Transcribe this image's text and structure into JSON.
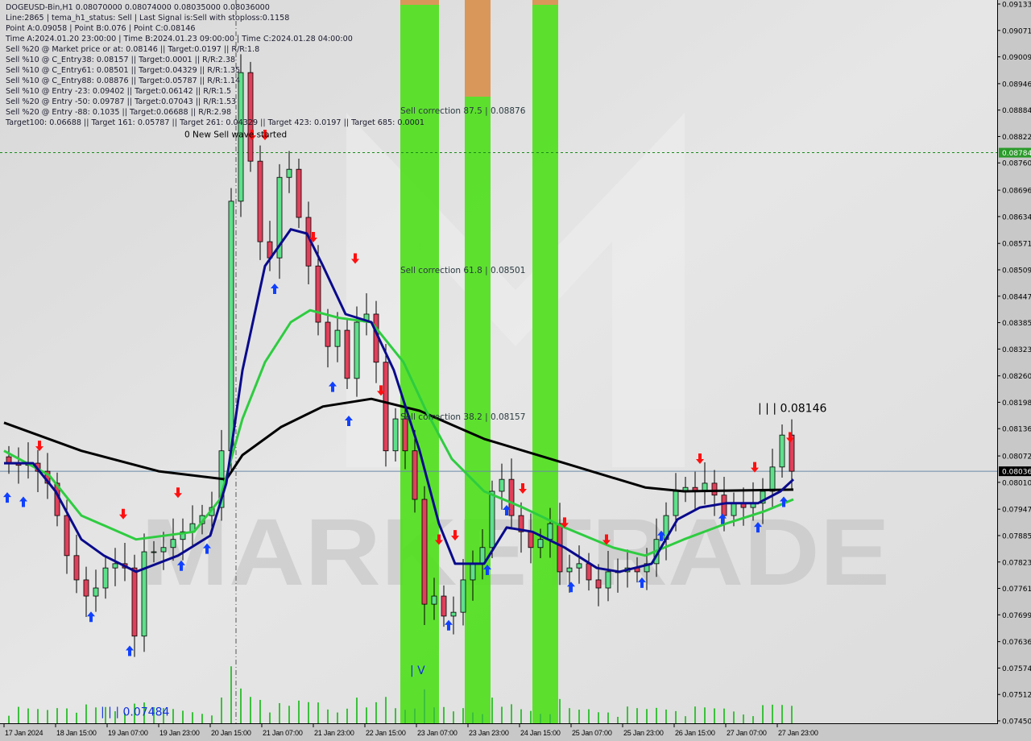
{
  "header": {
    "symbol_line": "DOGEUSD-Bin,H1  0.08070000 0.08074000 0.08035000 0.08036000",
    "info_lines": [
      "Line:2865 | tema_h1_status: Sell | Last Signal is:Sell with stoploss:0.1158",
      "Point A:0.09058 | Point B:0.076 | Point C:0.08146",
      "Time A:2024.01.20 23:00:00 | Time B:2024.01.23 09:00:00 | Time C:2024.01.28 04:00:00",
      "Sell %20 @ Market price or at: 0.08146 || Target:0.0197 || R/R:1.8",
      "Sell %10 @ C_Entry38: 0.08157 || Target:0.0001 || R/R:2.38",
      "Sell %10 @ C_Entry61: 0.08501 || Target:0.04329 || R/R:1.35",
      "Sell %10 @ C_Entry88: 0.08876 || Target:0.05787 || R/R:1.14",
      "Sell %10 @ Entry -23: 0.09402 || Target:0.06142 || R/R:1.5",
      "Sell %20 @ Entry -50: 0.09787 || Target:0.07043 || R/R:1.53",
      "Sell %20 @ Entry -88: 0.1035 || Target:0.06688 || R/R:2.98",
      "Target100: 0.06688 || Target 161: 0.05787 || Target 261: 0.04329 || Target 423: 0.0197 || Target 685: 0.0001"
    ]
  },
  "watermark": "MARKETRADE",
  "colors": {
    "bull": "#5ee08a",
    "bear": "#e0405a",
    "slow_ma": "#000000",
    "mid_ma": "#2ecc40",
    "fast_ma": "#0a0a8c",
    "band_green": "#4ee01a",
    "band_orange": "#d9975a",
    "buy_arrow": "#1040ff",
    "sell_arrow": "#ff1010",
    "price_line": "#6a8aa8",
    "level_line": "#1a8a1a"
  },
  "chart_data": {
    "type": "candlestick",
    "title": "DOGEUSD-Bin,H1",
    "ylim": [
      0.0745,
      0.09133
    ],
    "y_ticks": [
      "0.09133",
      "0.09071",
      "0.09009",
      "0.08946",
      "0.08884",
      "0.08822",
      "0.08760",
      "0.08696",
      "0.08634",
      "0.08571",
      "0.08509",
      "0.08447",
      "0.08385",
      "0.08323",
      "0.08260",
      "0.08198",
      "0.08136",
      "0.08072",
      "0.08010",
      "0.07947",
      "0.07885",
      "0.07823",
      "0.07761",
      "0.07699",
      "0.07636",
      "0.07574",
      "0.07512",
      "0.07450"
    ],
    "x_ticks": [
      {
        "label": "17 Jan 2024",
        "time": "2024-01-17 23:00"
      },
      {
        "label": "18 Jan 15:00",
        "time": "2024-01-18 15:00"
      },
      {
        "label": "19 Jan 07:00",
        "time": "2024-01-19 07:00"
      },
      {
        "label": "19 Jan 23:00",
        "time": "2024-01-19 23:00"
      },
      {
        "label": "20 Jan 15:00",
        "time": "2024-01-20 15:00"
      },
      {
        "label": "21 Jan 07:00",
        "time": "2024-01-21 07:00"
      },
      {
        "label": "21 Jan 23:00",
        "time": "2024-01-21 23:00"
      },
      {
        "label": "22 Jan 15:00",
        "time": "2024-01-22 15:00"
      },
      {
        "label": "23 Jan 07:00",
        "time": "2024-01-23 07:00"
      },
      {
        "label": "23 Jan 23:00",
        "time": "2024-01-23 23:00"
      },
      {
        "label": "24 Jan 15:00",
        "time": "2024-01-24 15:00"
      },
      {
        "label": "25 Jan 07:00",
        "time": "2024-01-25 07:00"
      },
      {
        "label": "25 Jan 23:00",
        "time": "2024-01-25 23:00"
      },
      {
        "label": "26 Jan 15:00",
        "time": "2024-01-26 15:00"
      },
      {
        "label": "27 Jan 07:00",
        "time": "2024-01-27 07:00"
      },
      {
        "label": "27 Jan 23:00",
        "time": "2024-01-27 23:00"
      }
    ],
    "candles": {
      "start": "2024-01-17 23:00",
      "bar_interval_hours": 3,
      "first_open": 0.0807,
      "close": [
        0.08055,
        0.0805,
        0.08055,
        0.08036,
        0.08008,
        0.07932,
        0.07838,
        0.07781,
        0.07743,
        0.07762,
        0.07809,
        0.07819,
        0.07809,
        0.07649,
        0.07847,
        0.07847,
        0.07857,
        0.07876,
        0.07894,
        0.07913,
        0.07932,
        0.07951,
        0.08084,
        0.0867,
        0.08972,
        0.08764,
        0.08575,
        0.08537,
        0.08726,
        0.08745,
        0.08632,
        0.08518,
        0.08386,
        0.08329,
        0.08367,
        0.08254,
        0.08386,
        0.08405,
        0.08292,
        0.08084,
        0.08159,
        0.08084,
        0.0797,
        0.07724,
        0.07743,
        0.07696,
        0.07705,
        0.07781,
        0.07819,
        0.07857,
        0.07989,
        0.08017,
        0.07932,
        0.07894,
        0.07857,
        0.07876,
        0.07913,
        0.078,
        0.07809,
        0.07819,
        0.07781,
        0.07762,
        0.078,
        0.078,
        0.07809,
        0.078,
        0.07819,
        0.07876,
        0.07932,
        0.07989,
        0.07998,
        0.07989,
        0.08008,
        0.0798,
        0.07932,
        0.07961,
        0.07951,
        0.07961,
        0.07989,
        0.08046,
        0.08121,
        0.08036
      ]
    },
    "lines": [
      {
        "color_key": "slow_ma",
        "points": [
          [
            "2024-01-17 23:00",
            0.0815
          ],
          [
            "2024-01-18 23:00",
            0.08084
          ],
          [
            "2024-01-19 23:00",
            0.08036
          ],
          [
            "2024-01-20 20:00",
            0.08017
          ],
          [
            "2024-01-21 01:00",
            0.08074
          ],
          [
            "2024-01-21 13:00",
            0.0814
          ],
          [
            "2024-01-22 02:00",
            0.08188
          ],
          [
            "2024-01-22 17:00",
            0.08206
          ],
          [
            "2024-01-23 08:00",
            0.08178
          ],
          [
            "2024-01-24 04:00",
            0.08112
          ],
          [
            "2024-01-25 05:00",
            0.08055
          ],
          [
            "2024-01-26 06:00",
            0.07998
          ],
          [
            "2024-01-26 18:00",
            0.07989
          ],
          [
            "2024-01-28 04:00",
            0.07993
          ]
        ]
      },
      {
        "color_key": "mid_ma",
        "points": [
          [
            "2024-01-17 23:00",
            0.08084
          ],
          [
            "2024-01-18 13:00",
            0.08027
          ],
          [
            "2024-01-18 23:00",
            0.07932
          ],
          [
            "2024-01-19 16:00",
            0.07876
          ],
          [
            "2024-01-20 10:00",
            0.07894
          ],
          [
            "2024-01-20 18:00",
            0.0797
          ],
          [
            "2024-01-21 01:00",
            0.08159
          ],
          [
            "2024-01-21 08:00",
            0.08292
          ],
          [
            "2024-01-21 16:00",
            0.08386
          ],
          [
            "2024-01-21 22:00",
            0.08414
          ],
          [
            "2024-01-22 07:00",
            0.08396
          ],
          [
            "2024-01-22 17:00",
            0.08386
          ],
          [
            "2024-01-23 03:00",
            0.08292
          ],
          [
            "2024-01-23 10:00",
            0.08178
          ],
          [
            "2024-01-23 18:00",
            0.08065
          ],
          [
            "2024-01-24 04:00",
            0.07989
          ],
          [
            "2024-01-24 16:00",
            0.07951
          ],
          [
            "2024-01-25 05:00",
            0.07904
          ],
          [
            "2024-01-25 20:00",
            0.07857
          ],
          [
            "2024-01-26 06:00",
            0.07838
          ],
          [
            "2024-01-26 18:00",
            0.07876
          ],
          [
            "2024-01-27 07:00",
            0.07913
          ],
          [
            "2024-01-27 19:00",
            0.07942
          ],
          [
            "2024-01-28 04:00",
            0.0797
          ]
        ]
      },
      {
        "color_key": "fast_ma",
        "points": [
          [
            "2024-01-17 23:00",
            0.08055
          ],
          [
            "2024-01-18 08:00",
            0.08055
          ],
          [
            "2024-01-18 15:00",
            0.07989
          ],
          [
            "2024-01-18 23:00",
            0.07876
          ],
          [
            "2024-01-19 06:00",
            0.07838
          ],
          [
            "2024-01-19 16:00",
            0.078
          ],
          [
            "2024-01-20 05:00",
            0.07838
          ],
          [
            "2024-01-20 15:00",
            0.07885
          ],
          [
            "2024-01-20 20:00",
            0.08008
          ],
          [
            "2024-01-21 01:00",
            0.08273
          ],
          [
            "2024-01-21 08:00",
            0.08518
          ],
          [
            "2024-01-21 16:00",
            0.08604
          ],
          [
            "2024-01-21 21:00",
            0.08594
          ],
          [
            "2024-01-22 02:00",
            0.08518
          ],
          [
            "2024-01-22 09:00",
            0.08405
          ],
          [
            "2024-01-22 17:00",
            0.08386
          ],
          [
            "2024-01-23 00:00",
            0.08273
          ],
          [
            "2024-01-23 08:00",
            0.08084
          ],
          [
            "2024-01-23 14:00",
            0.07913
          ],
          [
            "2024-01-23 19:00",
            0.07819
          ],
          [
            "2024-01-24 04:00",
            0.07819
          ],
          [
            "2024-01-24 11:00",
            0.07904
          ],
          [
            "2024-01-24 19:00",
            0.07894
          ],
          [
            "2024-01-25 05:00",
            0.07857
          ],
          [
            "2024-01-25 15:00",
            0.07809
          ],
          [
            "2024-01-25 22:00",
            0.078
          ],
          [
            "2024-01-26 08:00",
            0.07819
          ],
          [
            "2024-01-26 16:00",
            0.07923
          ],
          [
            "2024-01-26 23:00",
            0.07951
          ],
          [
            "2024-01-27 07:00",
            0.07961
          ],
          [
            "2024-01-27 17:00",
            0.07961
          ],
          [
            "2024-01-28 00:00",
            0.07989
          ],
          [
            "2024-01-28 04:00",
            0.08017
          ]
        ]
      }
    ],
    "bands": [
      {
        "from": "2024-01-23 02:00",
        "to": "2024-01-23 14:00",
        "color_key": "band_green"
      },
      {
        "from": "2024-01-23 22:00",
        "to": "2024-01-24 06:00",
        "color_key": "band_green",
        "top_color_key": "band_orange"
      },
      {
        "from": "2024-01-24 19:00",
        "to": "2024-01-25 03:00",
        "color_key": "band_green"
      }
    ],
    "vertical_marker": "2024-01-20 23:00",
    "levels": [
      {
        "price": 0.08784,
        "label": "0.08784",
        "color_key": "level_line",
        "style": "dashed"
      },
      {
        "price": 0.08036,
        "label": "0.08036",
        "color_key": "price_line",
        "style": "solid"
      }
    ],
    "annotations": [
      {
        "text": "Sell correction 87.5 | 0.08876",
        "time": "2024-01-23 02:00",
        "price": 0.08876,
        "color": "#2a3a40"
      },
      {
        "text": "Sell correction 61.8 | 0.08501",
        "time": "2024-01-23 02:00",
        "price": 0.08501,
        "color": "#2a3a40"
      },
      {
        "text": "Sell correction 38.2 | 0.08157",
        "time": "2024-01-23 02:00",
        "price": 0.08157,
        "color": "#2a3a40"
      },
      {
        "text": "0 New Sell wave started",
        "time": "2024-01-20 07:00",
        "price": 0.091,
        "color": "#000000"
      },
      {
        "text": "| | | 0.08146",
        "time": "2024-01-27 17:00",
        "price": 0.08175,
        "color": "#000000",
        "size": 14
      },
      {
        "text": "| | | 0.07484",
        "time": "2024-01-19 05:00",
        "price": 0.07462,
        "color": "#1030e0",
        "size": 14
      },
      {
        "text": "| V",
        "time": "2024-01-23 05:00",
        "price": 0.0756,
        "color": "#1030e0",
        "size": 14
      }
    ],
    "buy_signals": [
      [
        "2024-01-18 00:00",
        0.08
      ],
      [
        "2024-01-18 05:00",
        0.0799
      ],
      [
        "2024-01-19 02:00",
        0.0772
      ],
      [
        "2024-01-19 14:00",
        0.0764
      ],
      [
        "2024-01-20 06:00",
        0.0784
      ],
      [
        "2024-01-20 14:00",
        0.0788
      ],
      [
        "2024-01-21 11:00",
        0.0849
      ],
      [
        "2024-01-22 05:00",
        0.0826
      ],
      [
        "2024-01-22 10:00",
        0.0818
      ],
      [
        "2024-01-23 17:00",
        0.077
      ],
      [
        "2024-01-24 05:00",
        0.0783
      ],
      [
        "2024-01-24 11:00",
        0.0797
      ],
      [
        "2024-01-25 07:00",
        0.0779
      ],
      [
        "2024-01-26 05:00",
        0.078
      ],
      [
        "2024-01-26 11:00",
        0.0791
      ],
      [
        "2024-01-27 06:00",
        0.0795
      ],
      [
        "2024-01-27 17:00",
        0.0793
      ],
      [
        "2024-01-28 01:00",
        0.0799
      ]
    ],
    "sell_signals": [
      [
        "2024-01-18 10:00",
        0.0807
      ],
      [
        "2024-01-19 12:00",
        0.0791
      ],
      [
        "2024-01-20 05:00",
        0.0796
      ],
      [
        "2024-01-21 04:00",
        0.088
      ],
      [
        "2024-01-21 08:00",
        0.088
      ],
      [
        "2024-01-21 23:00",
        0.0856
      ],
      [
        "2024-01-22 12:00",
        0.0851
      ],
      [
        "2024-01-22 20:00",
        0.082
      ],
      [
        "2024-01-23 14:00",
        0.0785
      ],
      [
        "2024-01-23 19:00",
        0.0786
      ],
      [
        "2024-01-24 16:00",
        0.0797
      ],
      [
        "2024-01-25 05:00",
        0.0789
      ],
      [
        "2024-01-25 18:00",
        0.0785
      ],
      [
        "2024-01-26 23:00",
        0.0804
      ],
      [
        "2024-01-27 16:00",
        0.0802
      ],
      [
        "2024-01-28 03:00",
        0.0809
      ]
    ]
  }
}
